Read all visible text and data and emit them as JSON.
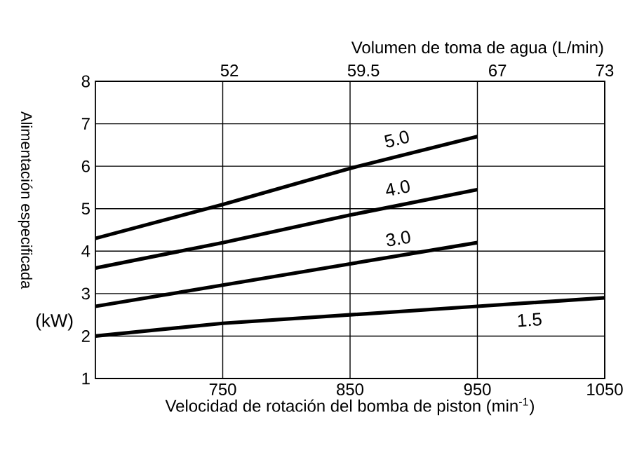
{
  "chart_data": {
    "type": "line",
    "xlabel": "Velocidad de rotación del bomba de piston (min$^{-1}$)",
    "ylabel": "Alimentación especificada",
    "x2label": "Volumen de toma de agua (L/min)",
    "annotations": [
      "(kW)"
    ],
    "x": [
      650,
      750,
      850,
      950,
      1050
    ],
    "xlim": [
      650,
      1050
    ],
    "xticks": [
      750,
      850,
      950,
      1050
    ],
    "x2lim": [
      44.5,
      73
    ],
    "x2ticks": [
      52,
      59.5,
      67,
      73
    ],
    "ylim": [
      1,
      8
    ],
    "yticks": [
      1,
      2,
      3,
      4,
      5,
      6,
      7,
      8
    ],
    "grid": true,
    "legend": false,
    "line_style": "solid",
    "series": [
      {
        "name": "5.0",
        "color": "#000000",
        "values": [
          4.3,
          5.1,
          5.95,
          6.7,
          null
        ]
      },
      {
        "name": "4.0",
        "color": "#000000",
        "values": [
          3.6,
          4.2,
          4.85,
          5.45,
          null
        ]
      },
      {
        "name": "3.0",
        "color": "#000000",
        "values": [
          2.7,
          3.2,
          3.7,
          4.2,
          null
        ]
      },
      {
        "name": "1.5",
        "color": "#000000",
        "values": [
          2.0,
          2.3,
          2.5,
          2.7,
          2.9
        ]
      }
    ]
  }
}
